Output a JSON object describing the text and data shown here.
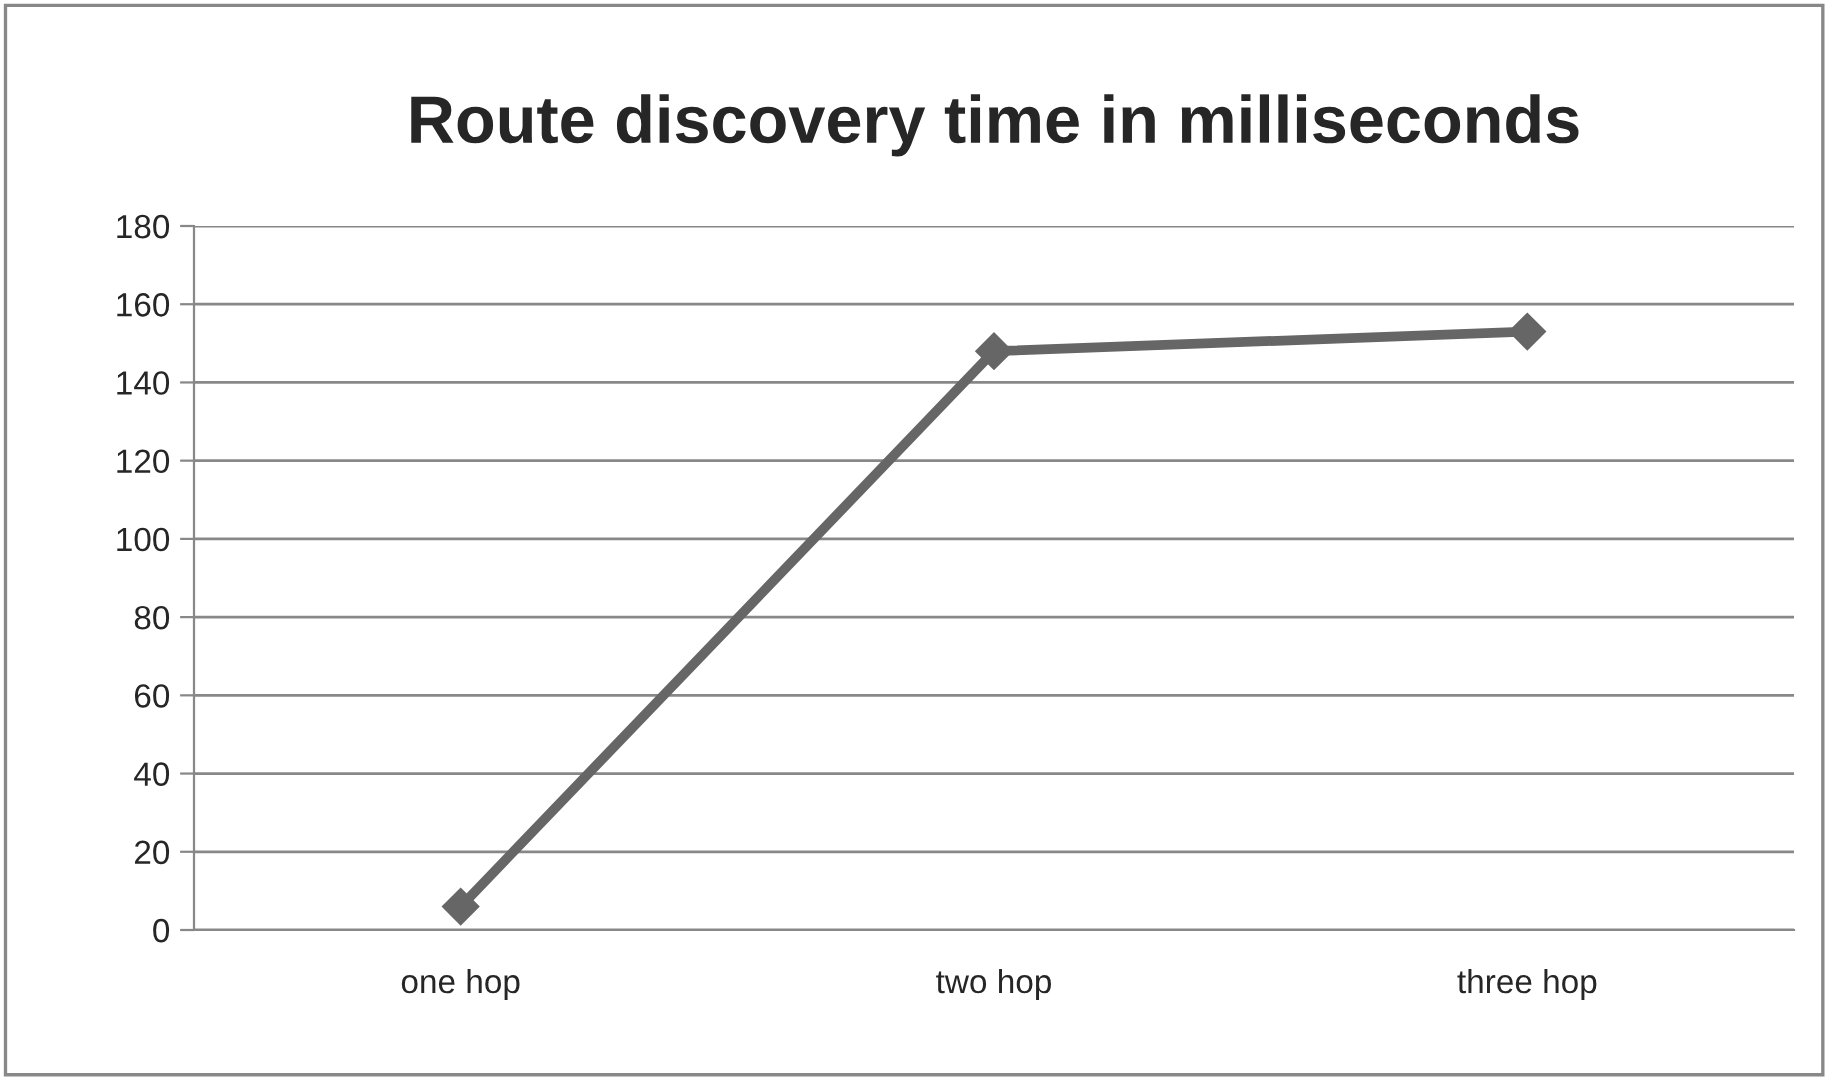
{
  "chart_data": {
    "type": "line",
    "title": "Route discovery time in milliseconds",
    "categories": [
      "one hop",
      "two hop",
      "three hop"
    ],
    "series": [
      {
        "color": "#666666",
        "values": [
          6,
          148,
          153
        ]
      }
    ],
    "ylim": [
      0,
      180
    ],
    "yticks": [
      0,
      20,
      40,
      60,
      80,
      100,
      120,
      140,
      160,
      180
    ],
    "grid": "y",
    "marker": "diamond",
    "line_style": "solid"
  }
}
